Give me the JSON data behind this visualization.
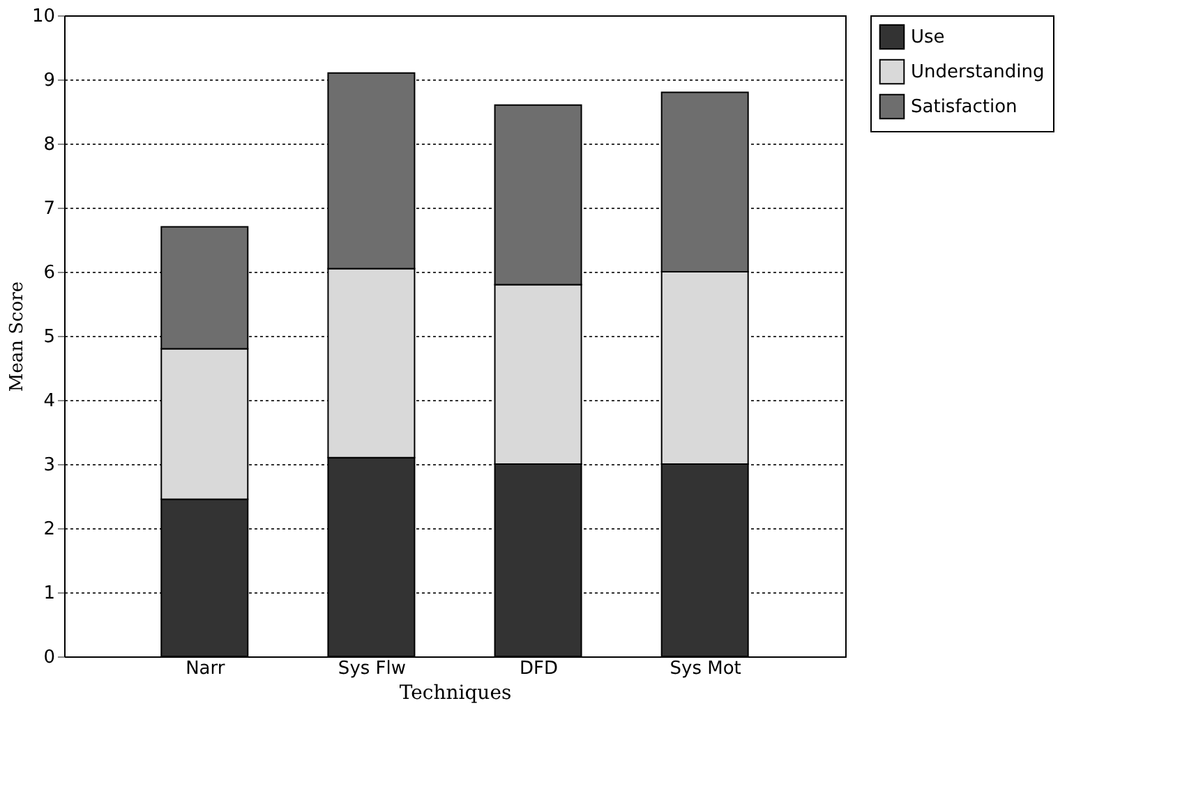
{
  "chart_data": {
    "type": "bar",
    "stacked": true,
    "xlabel": "Techniques",
    "ylabel": "Mean Score",
    "categories": [
      "Narr",
      "Sys Flw",
      "DFD",
      "Sys Mot"
    ],
    "series": [
      {
        "name": "Use",
        "color": "#333333",
        "values": [
          2.45,
          3.1,
          3.0,
          3.0
        ]
      },
      {
        "name": "Understanding",
        "color": "#d9d9d9",
        "values": [
          2.35,
          2.95,
          2.8,
          3.0
        ]
      },
      {
        "name": "Satisfaction",
        "color": "#6e6e6e",
        "values": [
          1.9,
          3.05,
          2.8,
          2.8
        ]
      }
    ],
    "ylim": [
      0,
      10
    ],
    "yticks": [
      0,
      1,
      2,
      3,
      4,
      5,
      6,
      7,
      8,
      9,
      10
    ],
    "grid": "y",
    "legend": "top right"
  }
}
